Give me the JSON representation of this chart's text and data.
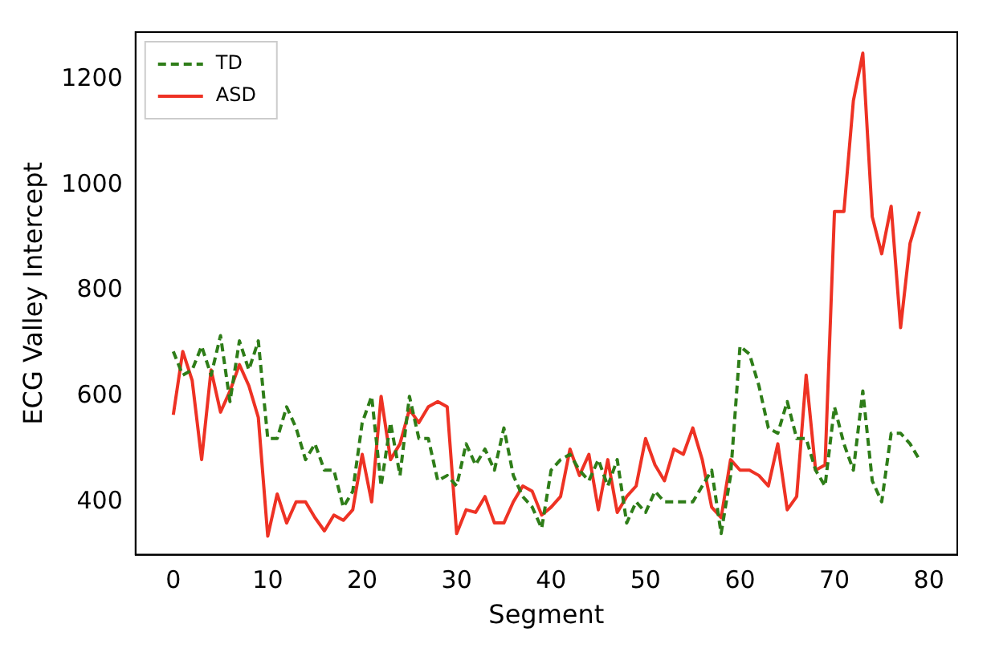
{
  "chart_data": {
    "type": "line",
    "xlabel": "Segment",
    "ylabel": "ECG Valley Intercept",
    "x": [
      0,
      1,
      2,
      3,
      4,
      5,
      6,
      7,
      8,
      9,
      10,
      11,
      12,
      13,
      14,
      15,
      16,
      17,
      18,
      19,
      20,
      21,
      22,
      23,
      24,
      25,
      26,
      27,
      28,
      29,
      30,
      31,
      32,
      33,
      34,
      35,
      36,
      37,
      38,
      39,
      40,
      41,
      42,
      43,
      44,
      45,
      46,
      47,
      48,
      49,
      50,
      51,
      52,
      53,
      54,
      55,
      56,
      57,
      58,
      59,
      60,
      61,
      62,
      63,
      64,
      65,
      66,
      67,
      68,
      69,
      70,
      71,
      72,
      73,
      74,
      75,
      76,
      77,
      78,
      79
    ],
    "series": [
      {
        "name": "TD",
        "color": "#2e7d18",
        "line_style": "dashed",
        "values": [
          685,
          640,
          650,
          695,
          640,
          715,
          590,
          705,
          650,
          705,
          520,
          520,
          580,
          540,
          480,
          510,
          460,
          460,
          390,
          420,
          550,
          600,
          430,
          550,
          450,
          600,
          520,
          520,
          440,
          450,
          430,
          510,
          470,
          500,
          460,
          540,
          450,
          410,
          390,
          350,
          460,
          480,
          490,
          460,
          440,
          480,
          430,
          480,
          360,
          400,
          380,
          420,
          400,
          400,
          400,
          400,
          430,
          460,
          340,
          450,
          695,
          680,
          620,
          540,
          530,
          590,
          520,
          520,
          460,
          430,
          580,
          510,
          460,
          610,
          440,
          400,
          530,
          530,
          510,
          480
        ]
      },
      {
        "name": "ASD",
        "color": "#ee3224",
        "line_style": "solid",
        "values": [
          565,
          685,
          630,
          480,
          650,
          570,
          610,
          660,
          620,
          560,
          335,
          415,
          360,
          400,
          400,
          370,
          345,
          375,
          365,
          385,
          490,
          400,
          600,
          480,
          510,
          575,
          550,
          580,
          590,
          580,
          340,
          385,
          380,
          410,
          360,
          360,
          400,
          430,
          420,
          375,
          390,
          410,
          500,
          450,
          490,
          385,
          480,
          380,
          410,
          430,
          520,
          470,
          440,
          500,
          490,
          540,
          480,
          390,
          370,
          480,
          460,
          460,
          450,
          430,
          510,
          385,
          410,
          640,
          460,
          470,
          950,
          950,
          1160,
          1250,
          940,
          870,
          960,
          730,
          890,
          950
        ]
      }
    ],
    "xlim": [
      -4,
      83
    ],
    "xticks": [
      0,
      10,
      20,
      30,
      40,
      50,
      60,
      70,
      80
    ],
    "ylim": [
      300,
      1290
    ],
    "yticks": [
      400,
      600,
      800,
      1000,
      1200
    ],
    "grid": false,
    "legend": "top left",
    "marker": "none"
  }
}
